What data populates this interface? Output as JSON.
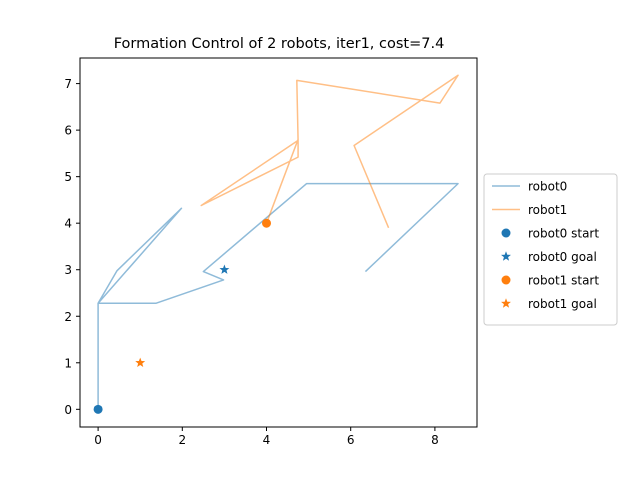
{
  "chart_data": {
    "type": "line",
    "title": "Formation Control of 2 robots, iter1, cost=7.4",
    "xlabel": "",
    "ylabel": "",
    "xlim": [
      -0.43,
      9.0
    ],
    "ylim": [
      -0.38,
      7.55
    ],
    "xticks": [
      0,
      2,
      4,
      6,
      8
    ],
    "yticks": [
      0,
      1,
      2,
      3,
      4,
      5,
      6,
      7
    ],
    "grid": false,
    "legend_position": "center-right-outside",
    "series": [
      {
        "name": "robot0",
        "kind": "line",
        "color": "#1f77b4",
        "alpha": 0.5,
        "x": [
          0,
          0,
          0.45,
          1.98,
          0,
          1.38,
          2.98,
          2.5,
          4.95,
          8.55,
          6.35
        ],
        "y": [
          0,
          2.28,
          2.98,
          4.32,
          2.28,
          2.28,
          2.78,
          2.96,
          4.85,
          4.85,
          2.96
        ]
      },
      {
        "name": "robot1",
        "kind": "line",
        "color": "#ff7f0e",
        "alpha": 0.5,
        "x": [
          4.0,
          4.75,
          4.75,
          2.45,
          4.75,
          4.72,
          8.12,
          8.55,
          6.08,
          6.9
        ],
        "y": [
          4.0,
          5.8,
          5.42,
          4.38,
          5.78,
          7.07,
          6.58,
          7.18,
          5.67,
          3.9
        ]
      },
      {
        "name": "robot0 start",
        "kind": "marker",
        "marker": "circle",
        "color": "#1f77b4",
        "x": [
          0
        ],
        "y": [
          0
        ]
      },
      {
        "name": "robot0 goal",
        "kind": "marker",
        "marker": "star",
        "color": "#1f77b4",
        "x": [
          3
        ],
        "y": [
          3
        ]
      },
      {
        "name": "robot1 start",
        "kind": "marker",
        "marker": "circle",
        "color": "#ff7f0e",
        "x": [
          4
        ],
        "y": [
          4
        ]
      },
      {
        "name": "robot1 goal",
        "kind": "marker",
        "marker": "star",
        "color": "#ff7f0e",
        "x": [
          1
        ],
        "y": [
          1
        ]
      }
    ]
  }
}
